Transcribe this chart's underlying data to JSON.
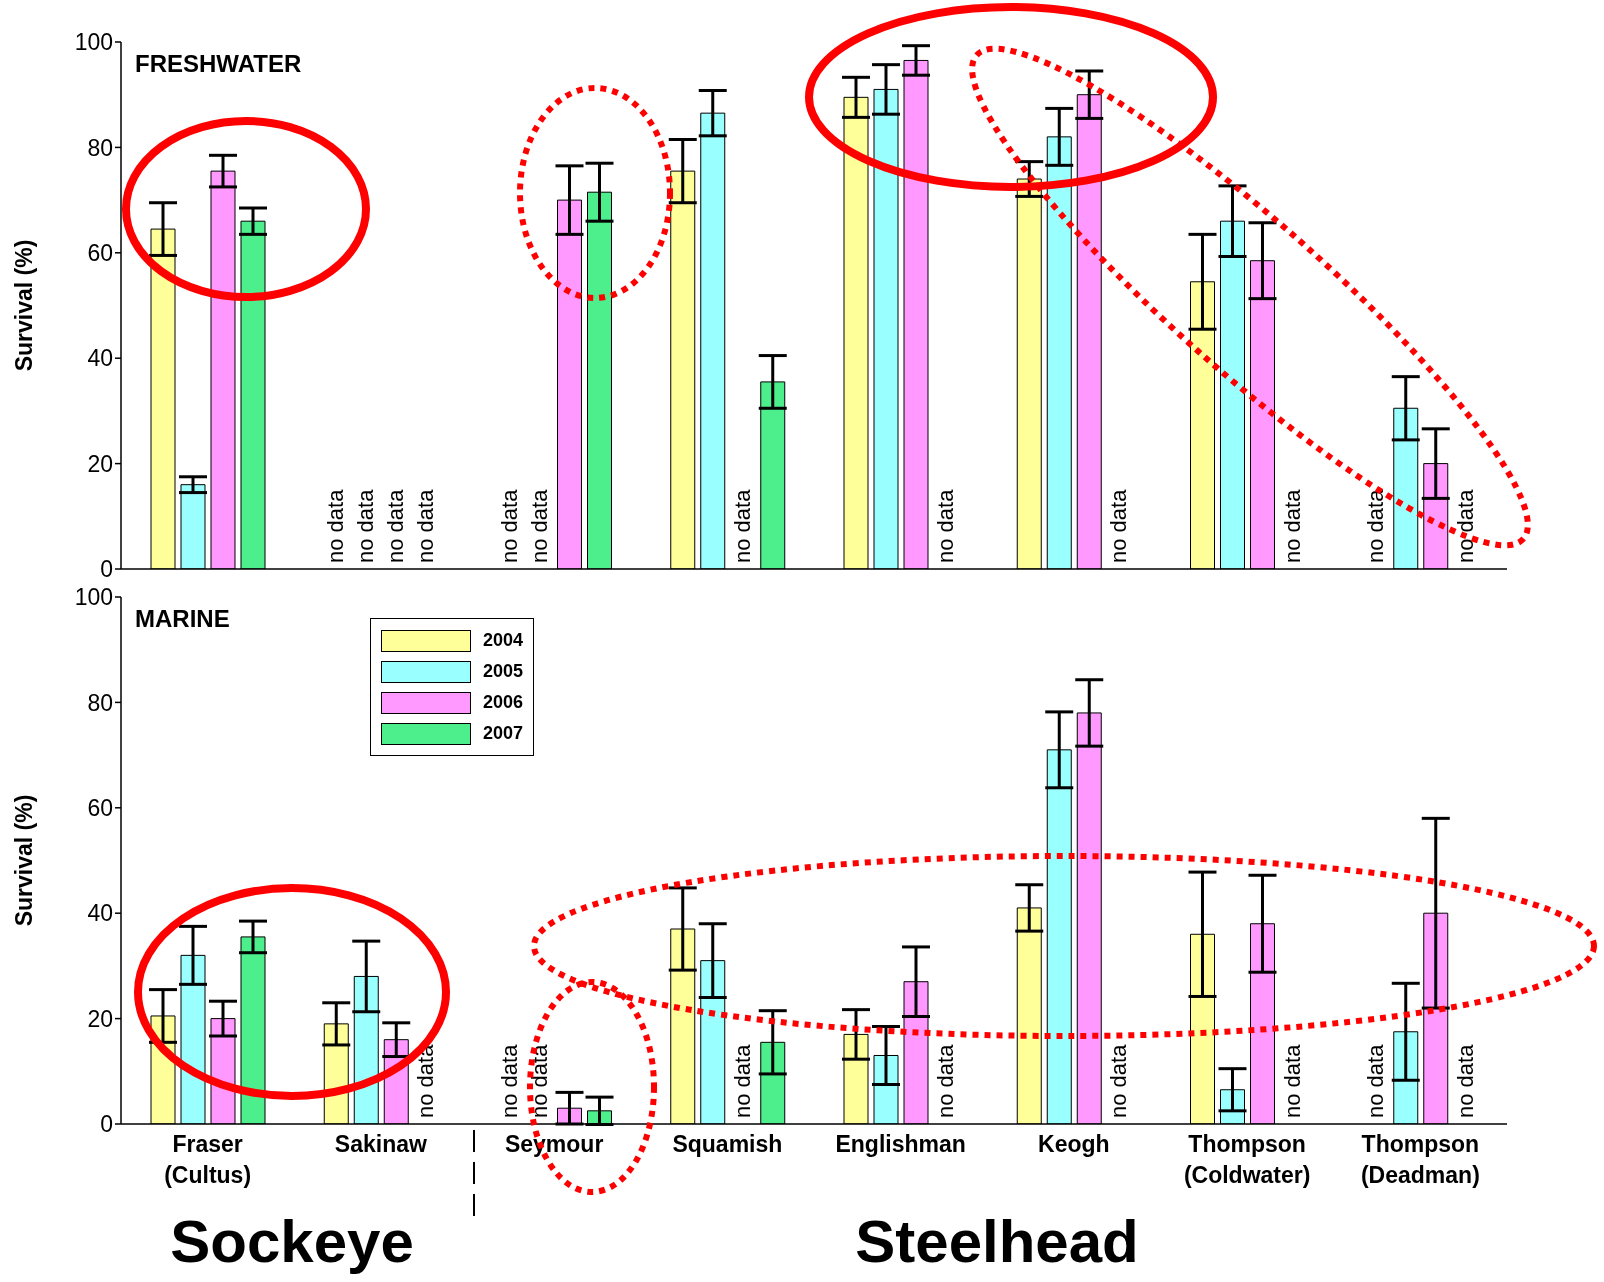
{
  "chart_data": [
    {
      "type": "bar",
      "title": "FRESHWATER",
      "ylabel": "Survival (%)",
      "categories": [
        null,
        null,
        null,
        null,
        null,
        null,
        null,
        null
      ],
      "ylim": [
        0,
        100
      ],
      "yticks": [
        0,
        20,
        40,
        60,
        80,
        100
      ],
      "grid": false,
      "legend": false,
      "tick_labels": "y",
      "series": [
        {
          "color": "#ffff99",
          "values": [
            64.5,
            null,
            null,
            75.5,
            89.5,
            74,
            54.5,
            null
          ],
          "errors": [
            5,
            null,
            null,
            6,
            3.8,
            3.3,
            9,
            null
          ],
          "value_labels": [
            null,
            "no data",
            "no data",
            null,
            null,
            null,
            null,
            "no data"
          ]
        },
        {
          "color": "#99ffff",
          "values": [
            16,
            null,
            null,
            86.5,
            91,
            82,
            66,
            30.5
          ],
          "errors": [
            1.5,
            null,
            null,
            4.3,
            4.7,
            5.4,
            6.7,
            6
          ],
          "value_labels": [
            null,
            "no data",
            "no data",
            null,
            null,
            null,
            null,
            null
          ]
        },
        {
          "color": "#ff99ff",
          "values": [
            75.5,
            null,
            70,
            null,
            96.5,
            90,
            58.5,
            20
          ],
          "errors": [
            3,
            null,
            6.5,
            null,
            2.8,
            4.5,
            7.2,
            6.6
          ],
          "value_labels": [
            null,
            "no data",
            null,
            "no data",
            null,
            null,
            null,
            null
          ]
        },
        {
          "color": "#4dee8c",
          "values": [
            66,
            null,
            71.5,
            35.5,
            null,
            null,
            null,
            null
          ],
          "errors": [
            2.5,
            null,
            5.5,
            5,
            null,
            null,
            null,
            null
          ],
          "value_labels": [
            null,
            "no data",
            null,
            null,
            "no data",
            "no data",
            "no data",
            "no data"
          ]
        }
      ]
    },
    {
      "type": "bar",
      "title": "MARINE",
      "ylabel": "Survival (%)",
      "categories": [
        "Fraser (Cultus)",
        "Sakinaw",
        "Seymour",
        "Squamish",
        "Englishman",
        "Keogh",
        "Thompson (Coldwater)",
        "Thompson (Deadman)"
      ],
      "ylim": [
        0,
        100
      ],
      "yticks": [
        0,
        20,
        40,
        60,
        80,
        100
      ],
      "grid": false,
      "legend": "top left",
      "annotations": [
        "Sockeye",
        "Steelhead"
      ],
      "series": [
        {
          "name": "2004",
          "color": "#ffff99",
          "values": [
            20.5,
            19,
            null,
            37,
            17,
            41,
            36,
            null
          ],
          "errors": [
            5,
            4,
            null,
            7.8,
            4.7,
            4.4,
            11.8,
            null
          ],
          "value_labels": [
            null,
            null,
            "no data",
            null,
            null,
            null,
            null,
            "no data"
          ]
        },
        {
          "name": "2005",
          "color": "#99ffff",
          "values": [
            32,
            28,
            null,
            31,
            13,
            71,
            6.5,
            17.5
          ],
          "errors": [
            5.5,
            6.7,
            null,
            7,
            5.5,
            7.2,
            4,
            9.2
          ],
          "value_labels": [
            null,
            null,
            "no data",
            null,
            null,
            null,
            null,
            null
          ]
        },
        {
          "name": "2006",
          "color": "#ff99ff",
          "values": [
            20,
            16,
            3,
            null,
            27,
            78,
            38,
            40
          ],
          "errors": [
            3.3,
            3.2,
            3,
            null,
            6.6,
            6.3,
            9.2,
            18
          ],
          "value_labels": [
            null,
            null,
            null,
            "no data",
            null,
            null,
            null,
            null
          ]
        },
        {
          "name": "2007",
          "color": "#4dee8c",
          "values": [
            35.5,
            null,
            2.5,
            15.5,
            null,
            null,
            null,
            null
          ],
          "errors": [
            3,
            null,
            2.6,
            6,
            null,
            null,
            null,
            null
          ],
          "value_labels": [
            null,
            "no data",
            null,
            null,
            "no data",
            "no data",
            "no data",
            "no data"
          ]
        }
      ]
    }
  ]
}
